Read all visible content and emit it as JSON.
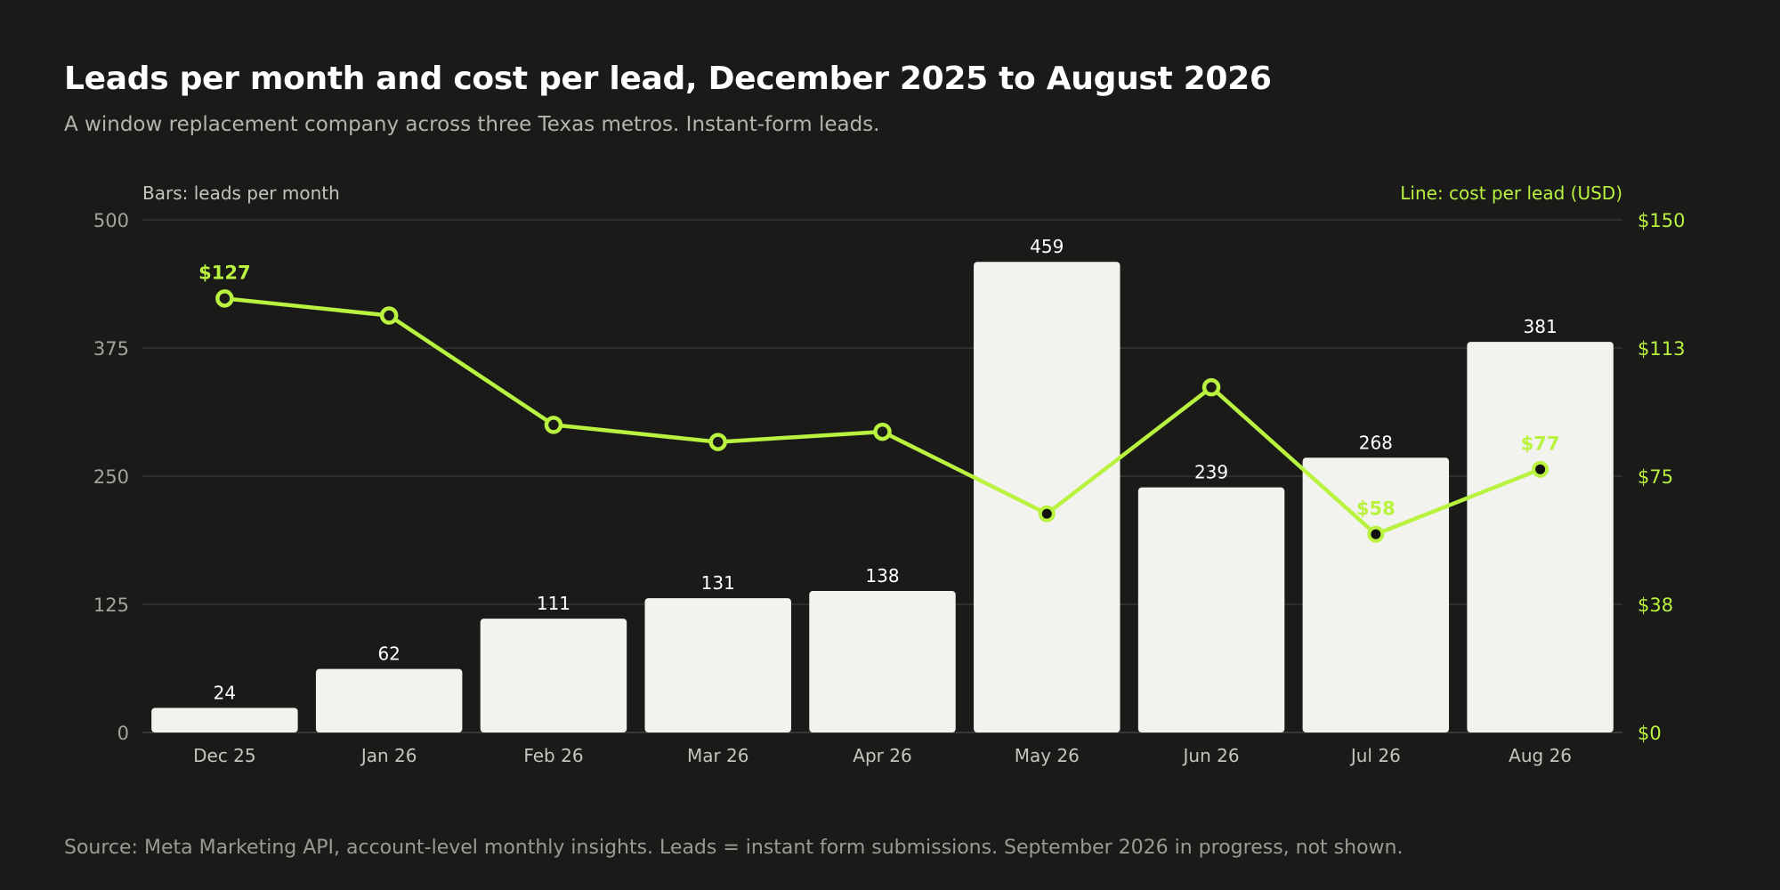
{
  "title": "Leads per month and cost per lead, December 2025 to August 2026",
  "subtitle": "A window replacement company across three Texas metros. Instant-form leads.",
  "source": "Source: Meta Marketing API, account-level monthly insights. Leads = instant form submissions. September 2026 in progress, not shown.",
  "colors": {
    "background": "#1a1a19",
    "bars": "#f2f2ee",
    "line": "#b9f23f",
    "grid": "#3a3a38",
    "axis_text": "#a3a39e",
    "bar_label": "#ffffff"
  },
  "chart_data": {
    "type": "bar",
    "title": "Leads per month and cost per lead, December 2025 to August 2026",
    "subtitle": "A window replacement company across three Texas metros. Instant-form leads.",
    "categories": [
      "Dec 25",
      "Jan 26",
      "Feb 26",
      "Mar 26",
      "Apr 26",
      "May 26",
      "Jun 26",
      "Jul 26",
      "Aug 26"
    ],
    "left_axis_title": "Bars: leads per month",
    "right_axis_title": "Line: cost per lead (USD)",
    "ylim_left": [
      0,
      500
    ],
    "ylim_right": [
      0,
      150
    ],
    "left_ticks": [
      0,
      125,
      250,
      375,
      500
    ],
    "left_tick_labels": [
      "0",
      "125",
      "250",
      "375",
      "500"
    ],
    "right_ticks": [
      0,
      37.5,
      75,
      112.5,
      150
    ],
    "right_tick_labels": [
      "$0",
      "$38",
      "$75",
      "$113",
      "$150"
    ],
    "grid": true,
    "series": [
      {
        "type": "bar",
        "axis": "left",
        "values": [
          24,
          62,
          111,
          131,
          138,
          459,
          239,
          268,
          381
        ],
        "data_labels": [
          "24",
          "62",
          "111",
          "131",
          "138",
          "459",
          "239",
          "268",
          "381"
        ]
      },
      {
        "type": "line",
        "axis": "right",
        "values": [
          127,
          122,
          90,
          85,
          88,
          64,
          101,
          58,
          77
        ],
        "marker_style": [
          "hollow",
          "hollow",
          "hollow",
          "hollow",
          "hollow",
          "filled",
          "hollow",
          "filled",
          "filled"
        ],
        "point_labels": [
          "$127",
          "",
          "",
          "",
          "",
          "",
          "",
          "$58",
          "$77"
        ]
      }
    ]
  }
}
